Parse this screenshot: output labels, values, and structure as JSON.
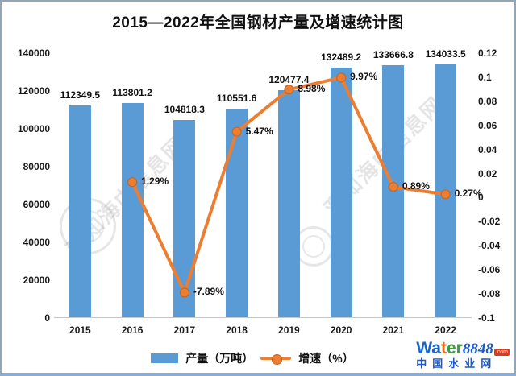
{
  "title": "2015—2022年全国钢材产量及增速统计图",
  "chart_data": {
    "type": "bar+line combo",
    "categories": [
      "2015",
      "2016",
      "2017",
      "2018",
      "2019",
      "2020",
      "2021",
      "2022"
    ],
    "series": [
      {
        "name": "产量（万吨）",
        "type": "bar",
        "axis": "left",
        "color": "#5B9BD5",
        "values": [
          112349.5,
          113801.2,
          104818.3,
          110551.6,
          120477.4,
          132489.2,
          133666.8,
          134033.5
        ],
        "labels": [
          "112349.5",
          "113801.2",
          "104818.3",
          "110551.6",
          "120477.4",
          "132489.2",
          "133666.8",
          "134033.5"
        ]
      },
      {
        "name": "增速（%）",
        "type": "line",
        "axis": "right",
        "color": "#ED7D31",
        "values": [
          null,
          0.0129,
          -0.0789,
          0.0547,
          0.0898,
          0.0997,
          0.0089,
          0.0027
        ],
        "labels": [
          null,
          "1.29%",
          "-7.89%",
          "5.47%",
          "8.98%",
          "9.97%",
          "0.89%",
          "0.27%"
        ]
      }
    ],
    "left_axis": {
      "min": 0,
      "max": 140000,
      "ticks": [
        "140000",
        "120000",
        "100000",
        "80000",
        "60000",
        "40000",
        "20000",
        "0"
      ]
    },
    "right_axis": {
      "min": -0.1,
      "max": 0.12,
      "ticks": [
        "0.12",
        "0.1",
        "0.08",
        "0.06",
        "0.04",
        "0.02",
        "0",
        "-0.02",
        "-0.04",
        "-0.06",
        "-0.08",
        "-0.1"
      ]
    },
    "grid": "off",
    "legend_position": "bottom"
  },
  "legend": {
    "bar_label": "产量（万吨）",
    "line_label": "增速（%）"
  },
  "watermark": {
    "text": "观知海内信息网"
  },
  "logo": {
    "wa": "Wa",
    "t": "t",
    "er": "er",
    "num": "8848",
    "com": ".com",
    "subtitle": "中国水业网"
  }
}
